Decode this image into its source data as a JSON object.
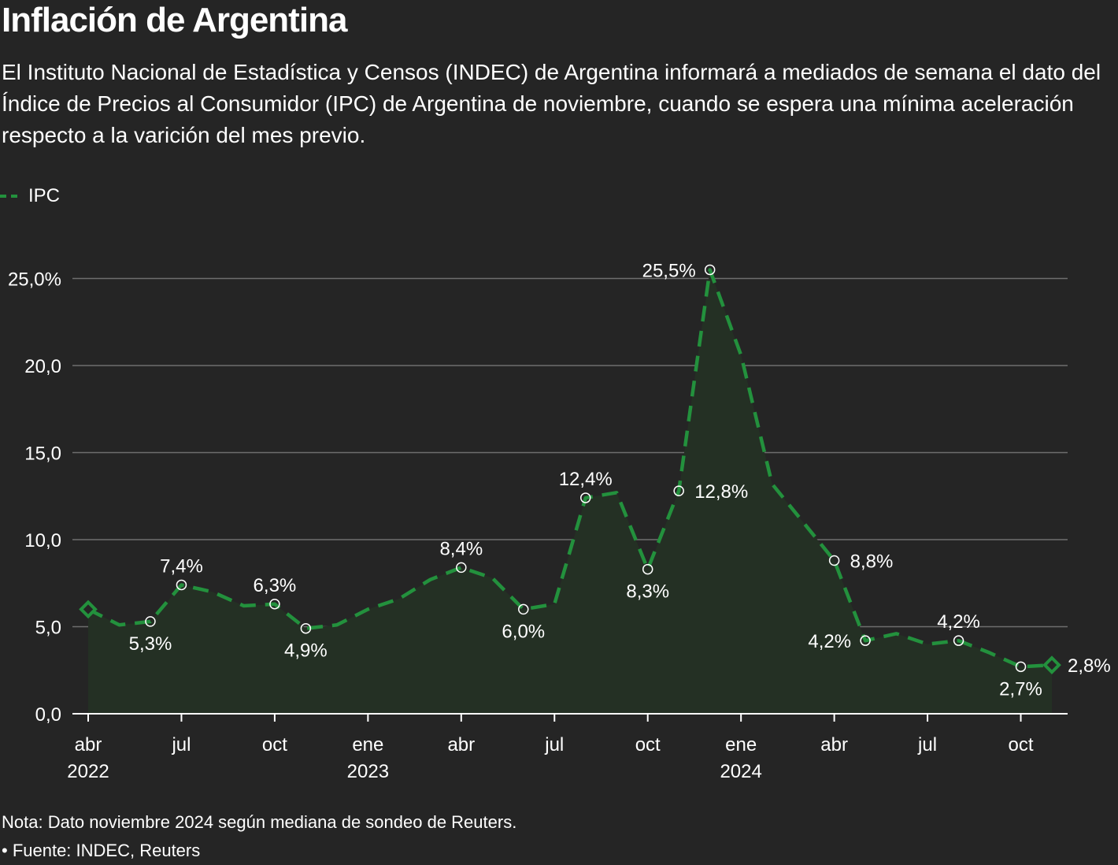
{
  "title": "Inflación de Argentina",
  "subtitle": "El Instituto Nacional de Estadística y Censos (INDEC) de Argentina informará a mediados de semana el dato del Índice de Precios al Consumidor (IPC) de Argentina de noviembre, cuando se espera una mínima aceleración respecto a la varición del mes previo.",
  "legend": {
    "label": "IPC"
  },
  "note": "Nota: Dato noviembre 2024 según mediana de sondeo de Reuters.",
  "source": "• Fuente: INDEC, Reuters",
  "colors": {
    "line": "#23913d",
    "area": "#243024",
    "grid": "#6e6e6e",
    "axis": "#ffffff",
    "background": "#252525"
  },
  "chart_data": {
    "type": "line",
    "title": "Inflación de Argentina",
    "ylabel": "",
    "xlabel": "",
    "ylim": [
      0,
      25
    ],
    "y_ticks": [
      {
        "value": 0,
        "label": "0,0"
      },
      {
        "value": 5,
        "label": "5,0"
      },
      {
        "value": 10,
        "label": "10,0"
      },
      {
        "value": 15,
        "label": "15,0"
      },
      {
        "value": 20,
        "label": "20,0"
      },
      {
        "value": 25,
        "label": "25,0%"
      }
    ],
    "x_ticks": [
      {
        "index": 0,
        "month": "abr",
        "year": "2022"
      },
      {
        "index": 3,
        "month": "jul",
        "year": ""
      },
      {
        "index": 6,
        "month": "oct",
        "year": ""
      },
      {
        "index": 9,
        "month": "ene",
        "year": "2023"
      },
      {
        "index": 12,
        "month": "abr",
        "year": ""
      },
      {
        "index": 15,
        "month": "jul",
        "year": ""
      },
      {
        "index": 18,
        "month": "oct",
        "year": ""
      },
      {
        "index": 21,
        "month": "ene",
        "year": "2024"
      },
      {
        "index": 24,
        "month": "abr",
        "year": ""
      },
      {
        "index": 27,
        "month": "jul",
        "year": ""
      },
      {
        "index": 30,
        "month": "oct",
        "year": ""
      }
    ],
    "series": [
      {
        "name": "IPC",
        "x": [
          "2022-04",
          "2022-05",
          "2022-06",
          "2022-07",
          "2022-08",
          "2022-09",
          "2022-10",
          "2022-11",
          "2022-12",
          "2023-01",
          "2023-02",
          "2023-03",
          "2023-04",
          "2023-05",
          "2023-06",
          "2023-07",
          "2023-08",
          "2023-09",
          "2023-10",
          "2023-11",
          "2023-12",
          "2024-01",
          "2024-02",
          "2024-03",
          "2024-04",
          "2024-05",
          "2024-06",
          "2024-07",
          "2024-08",
          "2024-09",
          "2024-10",
          "2024-11"
        ],
        "values": [
          6.0,
          5.1,
          5.3,
          7.4,
          7.0,
          6.2,
          6.3,
          4.9,
          5.1,
          6.0,
          6.6,
          7.7,
          8.4,
          7.8,
          6.0,
          6.3,
          12.4,
          12.7,
          8.3,
          12.8,
          25.5,
          20.6,
          13.2,
          11.0,
          8.8,
          4.2,
          4.6,
          4.0,
          4.2,
          3.5,
          2.7,
          2.8
        ]
      }
    ],
    "markers": [
      {
        "index": 0,
        "shape": "diamond"
      },
      {
        "index": 31,
        "shape": "diamond"
      }
    ],
    "annotations": [
      {
        "index": 2,
        "label": "5,3%",
        "pos": "below"
      },
      {
        "index": 3,
        "label": "7,4%",
        "pos": "above"
      },
      {
        "index": 6,
        "label": "6,3%",
        "pos": "above"
      },
      {
        "index": 7,
        "label": "4,9%",
        "pos": "below"
      },
      {
        "index": 12,
        "label": "8,4%",
        "pos": "above"
      },
      {
        "index": 14,
        "label": "6,0%",
        "pos": "below"
      },
      {
        "index": 16,
        "label": "12,4%",
        "pos": "above"
      },
      {
        "index": 18,
        "label": "8,3%",
        "pos": "below"
      },
      {
        "index": 19,
        "label": "12,8%",
        "pos": "right"
      },
      {
        "index": 20,
        "label": "25,5%",
        "pos": "left"
      },
      {
        "index": 24,
        "label": "8,8%",
        "pos": "right"
      },
      {
        "index": 25,
        "label": "4,2%",
        "pos": "left"
      },
      {
        "index": 28,
        "label": "4,2%",
        "pos": "above"
      },
      {
        "index": 30,
        "label": "2,7%",
        "pos": "below"
      },
      {
        "index": 31,
        "label": "2,8%",
        "pos": "right"
      }
    ]
  }
}
